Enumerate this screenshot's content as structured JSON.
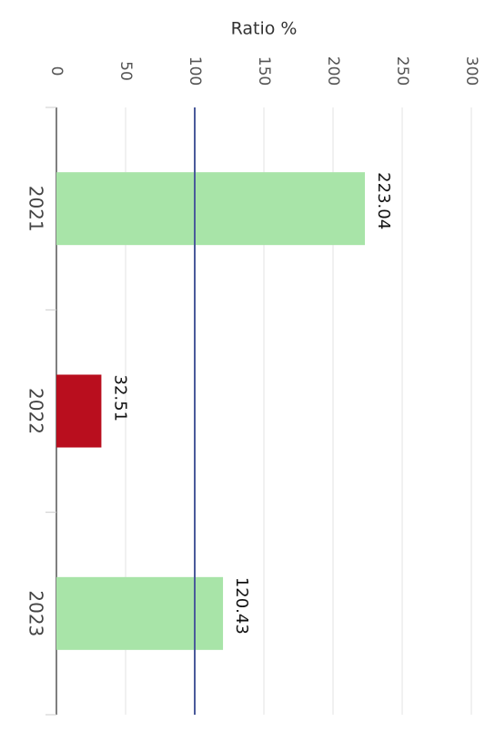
{
  "chart_data": {
    "type": "bar",
    "orientation": "horizontal",
    "title": "Ratio %",
    "categories": [
      "2021",
      "2022",
      "2023"
    ],
    "values": [
      223.04,
      32.51,
      120.43
    ],
    "colors": [
      "#a8e4a8",
      "#b90e1e",
      "#a8e4a8"
    ],
    "xlim": [
      0,
      300
    ],
    "xticks": [
      0,
      50,
      100,
      150,
      200,
      250,
      300
    ],
    "reference_line": 100,
    "reference_color": "#4a5a9a",
    "grid": true
  }
}
